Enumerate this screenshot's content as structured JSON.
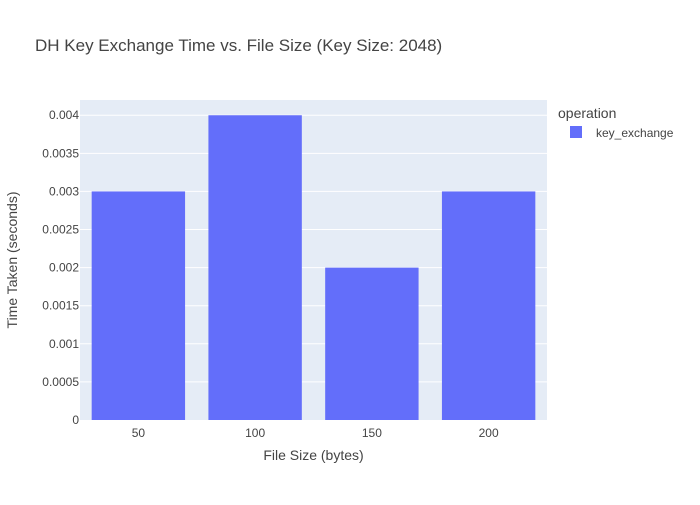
{
  "chart_data": {
    "type": "bar",
    "title": "DH Key Exchange Time vs. File Size (Key Size: 2048)",
    "xlabel": "File Size (bytes)",
    "ylabel": "Time Taken (seconds)",
    "categories": [
      "50",
      "100",
      "150",
      "200"
    ],
    "series": [
      {
        "name": "key_exchange",
        "values": [
          0.003,
          0.004,
          0.002,
          0.003
        ],
        "color": "#636efa"
      }
    ],
    "ylim": [
      0,
      0.0042
    ],
    "yticks": [
      "0",
      "0.0005",
      "0.001",
      "0.0015",
      "0.002",
      "0.0025",
      "0.003",
      "0.0035",
      "0.004"
    ],
    "grid": true,
    "legend_title": "operation",
    "legend_placement": "right",
    "plot_background": "#e5ecf6"
  }
}
